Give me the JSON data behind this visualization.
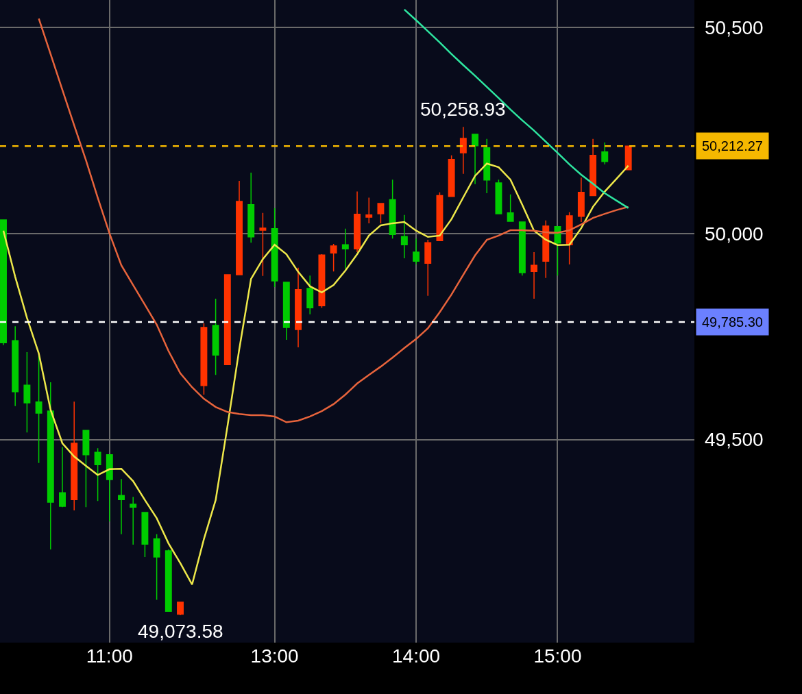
{
  "chart_data": {
    "type": "candlestick",
    "categories": [
      null,
      null,
      null,
      null,
      null,
      null,
      null,
      null,
      null,
      "11:00",
      null,
      null,
      null,
      null,
      null,
      null,
      null,
      null,
      null,
      null,
      null,
      null,
      null,
      "13:00",
      null,
      null,
      null,
      null,
      null,
      null,
      null,
      null,
      null,
      null,
      null,
      "14:00",
      null,
      null,
      null,
      null,
      null,
      null,
      null,
      null,
      null,
      null,
      null,
      "15:00",
      null,
      null,
      null,
      null,
      null,
      null
    ],
    "ohlc": [
      [
        50033,
        50033,
        49729,
        49735
      ],
      [
        49740,
        49775,
        49581,
        49616
      ],
      [
        49632,
        49712,
        49517,
        49589
      ],
      [
        49591,
        49702,
        49443,
        49564
      ],
      [
        49569,
        49639,
        49233,
        49348
      ],
      [
        49371,
        49482,
        49336,
        49338
      ],
      [
        49354,
        49592,
        49328,
        49491
      ],
      [
        49522,
        49522,
        49336,
        49463
      ],
      [
        49469,
        49479,
        49351,
        49439
      ],
      [
        49463,
        49463,
        49301,
        49403
      ],
      [
        49364,
        49404,
        49270,
        49354
      ],
      [
        49343,
        49361,
        49245,
        49336
      ],
      [
        49323,
        49323,
        49215,
        49246
      ],
      [
        49259,
        49270,
        49111,
        49215
      ],
      [
        49230,
        49233,
        49083,
        49083
      ],
      [
        49076,
        49105,
        49073.58,
        49105
      ],
      null,
      [
        49631,
        49782,
        49609,
        49772
      ],
      [
        49777,
        49842,
        49657,
        49705
      ],
      [
        49682,
        49900,
        49682,
        49900
      ],
      [
        49900,
        50128,
        49900,
        50078
      ],
      [
        50070,
        50148,
        49978,
        49992
      ],
      [
        50008,
        50050,
        49897,
        50013
      ],
      [
        50012,
        50062,
        49870,
        49885
      ],
      [
        49882,
        49882,
        49742,
        49772
      ],
      [
        49767,
        49917,
        49724,
        49864
      ],
      [
        49867,
        49898,
        49804,
        49820
      ],
      [
        49825,
        49950,
        49820,
        49948
      ],
      [
        49953,
        49975,
        49908,
        49970
      ],
      [
        49973,
        50012,
        49915,
        49963
      ],
      [
        49963,
        50102,
        49955,
        50047
      ],
      [
        50040,
        50087,
        50025,
        50045
      ],
      [
        50048,
        50073,
        50025,
        50073
      ],
      [
        50082,
        50131,
        49988,
        49998
      ],
      [
        49993,
        50045,
        49940,
        49973
      ],
      [
        49955,
        49988,
        49925,
        49933
      ],
      [
        49928,
        49985,
        49849,
        49978
      ],
      [
        49983,
        50100,
        49983,
        50092
      ],
      [
        50090,
        50190,
        50090,
        50180
      ],
      [
        50196,
        50258.93,
        50145,
        50231
      ],
      [
        50241,
        50241,
        50120,
        50213
      ],
      [
        50208,
        50230,
        50098,
        50130
      ],
      [
        50123,
        50131,
        50048,
        50048
      ],
      [
        50050,
        50095,
        50030,
        50030
      ],
      [
        50028,
        50028,
        49898,
        49905
      ],
      [
        49908,
        49955,
        49842,
        49923
      ],
      [
        49933,
        50032,
        49892,
        50018
      ],
      [
        50017,
        50017,
        49898,
        49977
      ],
      [
        49973,
        50052,
        49925,
        50043
      ],
      [
        50042,
        50136,
        50028,
        50100
      ],
      [
        50092,
        50230,
        50092,
        50190
      ],
      [
        50198,
        50221,
        50168,
        50175
      ],
      null,
      [
        50155,
        50212.27,
        50155,
        50212.27
      ]
    ],
    "colors": [
      "#00cc00",
      "#00cc00",
      "#00cc00",
      "#00cc00",
      "#00cc00",
      "#00cc00",
      "#ff3300",
      "#00cc00",
      "#00cc00",
      "#00cc00",
      "#00cc00",
      "#00cc00",
      "#00cc00",
      "#00cc00",
      "#00cc00",
      "#ff3300",
      null,
      "#ff3300",
      "#00cc00",
      "#ff3300",
      "#ff3300",
      "#00cc00",
      "#ff3300",
      "#00cc00",
      "#00cc00",
      "#ff3300",
      "#00cc00",
      "#ff3300",
      "#ff3300",
      "#00cc00",
      "#ff3300",
      "#ff3300",
      "#ff3300",
      "#00cc00",
      "#00cc00",
      "#00cc00",
      "#ff3300",
      "#ff3300",
      "#ff3300",
      "#ff3300",
      "#00cc00",
      "#00cc00",
      "#00cc00",
      "#00cc00",
      "#00cc00",
      "#ff3300",
      "#ff3300",
      "#00cc00",
      "#ff3300",
      "#ff3300",
      "#ff3300",
      "#00cc00",
      null,
      "#ff3300"
    ],
    "series": [
      {
        "type": "line",
        "color": "#eee84a",
        "values": [
          50007,
          49895,
          49795,
          49709,
          49572,
          49491,
          49459,
          49436,
          49414,
          49428,
          49429,
          49399,
          49353,
          49309,
          49248,
          49200,
          49148,
          49258,
          49353,
          49532,
          49719,
          49890,
          49938,
          49973,
          49950,
          49907,
          49872,
          49857,
          49875,
          49910,
          49950,
          49995,
          50020,
          50025,
          50028,
          50007,
          49992,
          49995,
          50035,
          50088,
          50140,
          50170,
          50161,
          50131,
          50070,
          50007,
          49985,
          49972,
          49973,
          50013,
          50065,
          50102,
          50133,
          50165
        ]
      },
      {
        "type": "line",
        "color": "#e8643c",
        "values": [
          null,
          null,
          null,
          50522,
          50436,
          50349,
          50263,
          50178,
          50087,
          50000,
          49923,
          49875,
          49827,
          49779,
          49715,
          49661,
          49627,
          49599,
          49579,
          49567,
          49562,
          49559,
          49559,
          49556,
          49542,
          49546,
          49556,
          49569,
          49586,
          49609,
          49636,
          49657,
          49677,
          49699,
          49722,
          49744,
          49770,
          49809,
          49852,
          49900,
          49947,
          49985,
          49995,
          50008,
          50008,
          50007,
          50003,
          50002,
          50008,
          50022,
          50038,
          50048,
          50057,
          50065
        ]
      },
      {
        "type": "line",
        "color": "#2ee6a0",
        "values": [
          null,
          null,
          null,
          null,
          null,
          null,
          null,
          null,
          null,
          null,
          null,
          null,
          null,
          null,
          null,
          null,
          null,
          null,
          null,
          null,
          null,
          null,
          null,
          null,
          null,
          null,
          null,
          null,
          null,
          null,
          null,
          null,
          null,
          null,
          50544,
          50518,
          50491,
          50464,
          50436,
          50409,
          50383,
          50356,
          50329,
          50301,
          50275,
          50250,
          50223,
          50196,
          50168,
          50143,
          50121,
          50098,
          50080,
          50062
        ]
      }
    ],
    "ylim": [
      49007,
      50567
    ],
    "yticks": [
      {
        "value": 49500,
        "label": "49,500"
      },
      {
        "value": 50000,
        "label": "50,000"
      },
      {
        "value": 50500,
        "label": "50,500"
      }
    ],
    "ref_lines": [
      {
        "axis": "y",
        "value": 50212.27,
        "label": "50,212.27",
        "color": "#f5b800",
        "line_style": "dashed"
      },
      {
        "axis": "y",
        "value": 49785.3,
        "label": "49,785.30",
        "color": "#ffffff",
        "line_style": "dashed"
      }
    ],
    "annotations": [
      {
        "text": "50,258.93",
        "y": 50258.93
      },
      {
        "text": "49,073.58",
        "y": 49073.58
      }
    ],
    "grid": true
  }
}
